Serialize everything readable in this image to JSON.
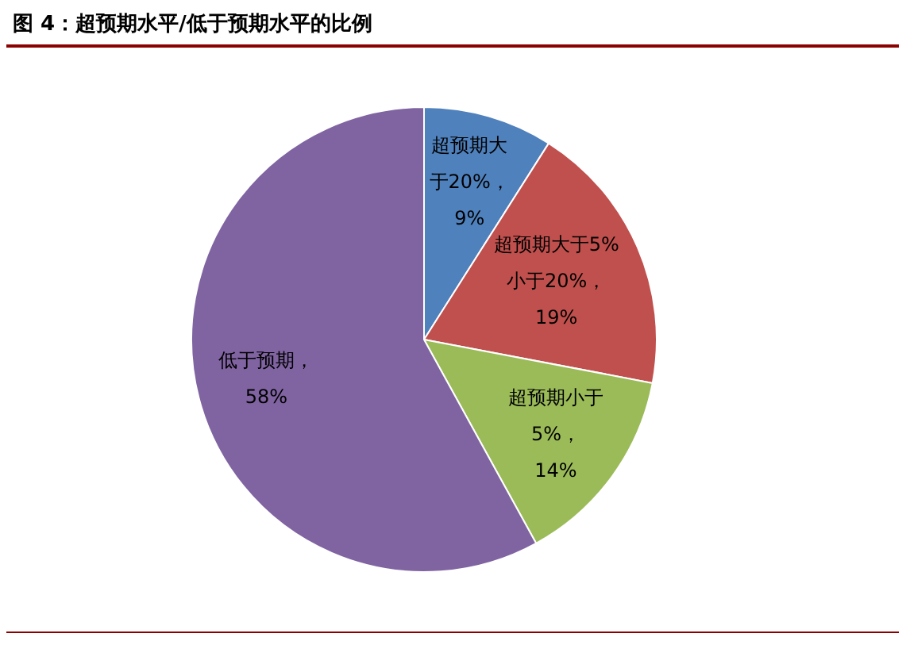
{
  "chart_data": {
    "type": "pie",
    "title": "图 4：超预期水平/低于预期水平的比例",
    "categories": [
      "超预期大于20%",
      "超预期大于5%小于20%",
      "超预期小于5%",
      "低于预期"
    ],
    "values": [
      9,
      19,
      14,
      58
    ],
    "colors": [
      "#4f81bd",
      "#c0504d",
      "#9bbb59",
      "#8064a2"
    ],
    "value_labels": [
      "，9%",
      "，19%",
      "，14%",
      "，58%"
    ],
    "legend": false
  }
}
